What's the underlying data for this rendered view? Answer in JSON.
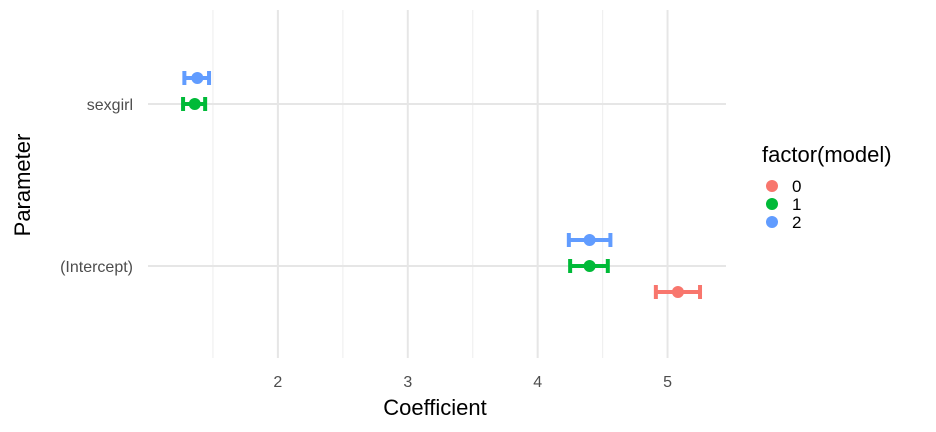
{
  "chart_data": {
    "type": "scatter",
    "subtype": "coefficient-errorbar",
    "xlabel": "Coefficient",
    "ylabel": "Parameter",
    "x_ticks": [
      2,
      3,
      4,
      5
    ],
    "xlim": [
      1.0,
      5.45
    ],
    "categories": [
      "(Intercept)",
      "sexgirl"
    ],
    "legend": {
      "title": "factor(model)",
      "position": "right"
    },
    "grid": true,
    "series": [
      {
        "name": "0",
        "color": "#F8766D",
        "values": [
          {
            "category": "(Intercept)",
            "estimate": 5.08,
            "low": 4.91,
            "high": 5.25
          }
        ]
      },
      {
        "name": "1",
        "color": "#00BA38",
        "values": [
          {
            "category": "(Intercept)",
            "estimate": 4.4,
            "low": 4.25,
            "high": 4.54
          },
          {
            "category": "sexgirl",
            "estimate": 1.36,
            "low": 1.27,
            "high": 1.44
          }
        ]
      },
      {
        "name": "2",
        "color": "#619CFF",
        "values": [
          {
            "category": "(Intercept)",
            "estimate": 4.4,
            "low": 4.24,
            "high": 4.56
          },
          {
            "category": "sexgirl",
            "estimate": 1.38,
            "low": 1.28,
            "high": 1.47
          }
        ]
      }
    ]
  }
}
